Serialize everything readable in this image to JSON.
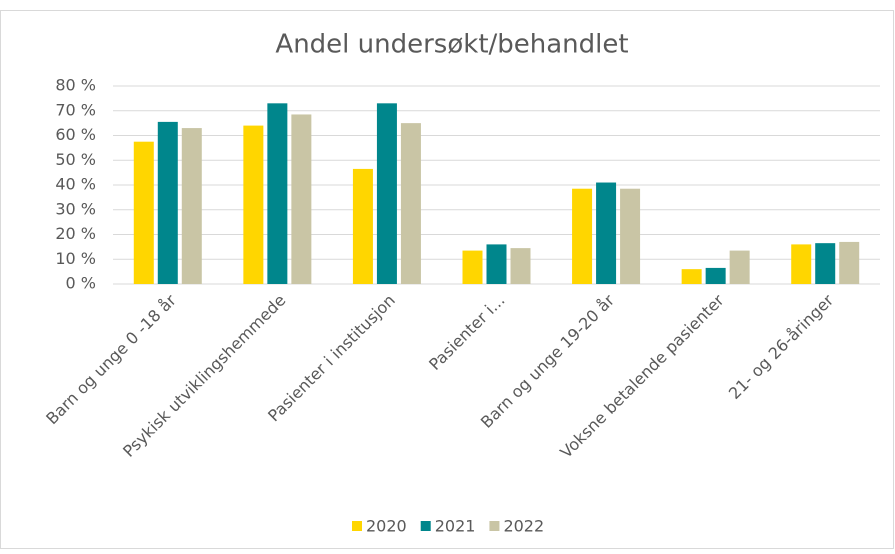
{
  "chart_data": {
    "type": "bar",
    "title": "Andel undersøkt/behandlet",
    "categories": [
      "Barn og unge 0 -18 år",
      "Psykisk utviklingshemmede",
      "Pasienter i institusjon",
      "Pasienter i...",
      "Barn og unge 19-20 år",
      "Voksne betalende pasienter",
      "21- og 26-åringer"
    ],
    "series": [
      {
        "name": "2020",
        "color": "#ffd600",
        "values": [
          57.5,
          64,
          46.5,
          13.5,
          38.5,
          6,
          16
        ]
      },
      {
        "name": "2021",
        "color": "#00868c",
        "values": [
          65.5,
          73,
          73,
          16,
          41,
          6.5,
          16.5
        ]
      },
      {
        "name": "2022",
        "color": "#c9c5a5",
        "values": [
          63,
          68.5,
          65,
          14.5,
          38.5,
          13.5,
          17
        ]
      }
    ],
    "ylim": [
      0,
      80
    ],
    "yticks": [
      {
        "value": 0,
        "label": "0 %"
      },
      {
        "value": 10,
        "label": "10 %"
      },
      {
        "value": 20,
        "label": "20 %"
      },
      {
        "value": 30,
        "label": "30 %"
      },
      {
        "value": 40,
        "label": "40 %"
      },
      {
        "value": 50,
        "label": "50 %"
      },
      {
        "value": 60,
        "label": "60 %"
      },
      {
        "value": 70,
        "label": "70 %"
      },
      {
        "value": 80,
        "label": "80 %"
      }
    ],
    "grid": true,
    "legend": "bottom"
  }
}
